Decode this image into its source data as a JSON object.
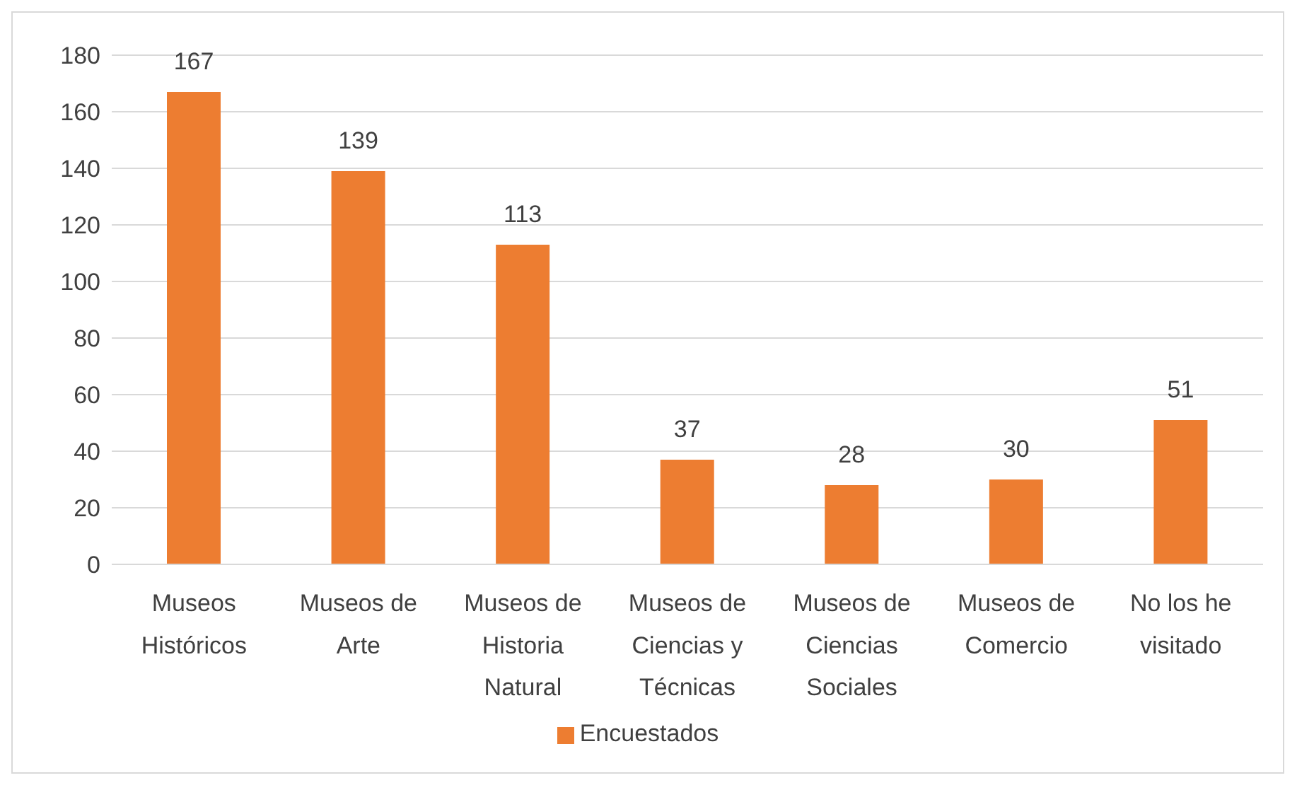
{
  "chart_data": {
    "type": "bar",
    "categories": [
      "Museos Históricos",
      "Museos de Arte",
      "Museos de Historia Natural",
      "Museos de Ciencias y Técnicas",
      "Museos de Ciencias Sociales",
      "Museos de Comercio",
      "No los he visitado"
    ],
    "series": [
      {
        "name": "Encuestados",
        "color": "#ed7d31",
        "values": [
          167,
          139,
          113,
          37,
          28,
          30,
          51
        ]
      }
    ],
    "ylim": [
      0,
      180
    ],
    "yticks": [
      0,
      20,
      40,
      60,
      80,
      100,
      120,
      140,
      160,
      180
    ],
    "grid": "y",
    "legend": "bottom",
    "data_labels": true
  }
}
